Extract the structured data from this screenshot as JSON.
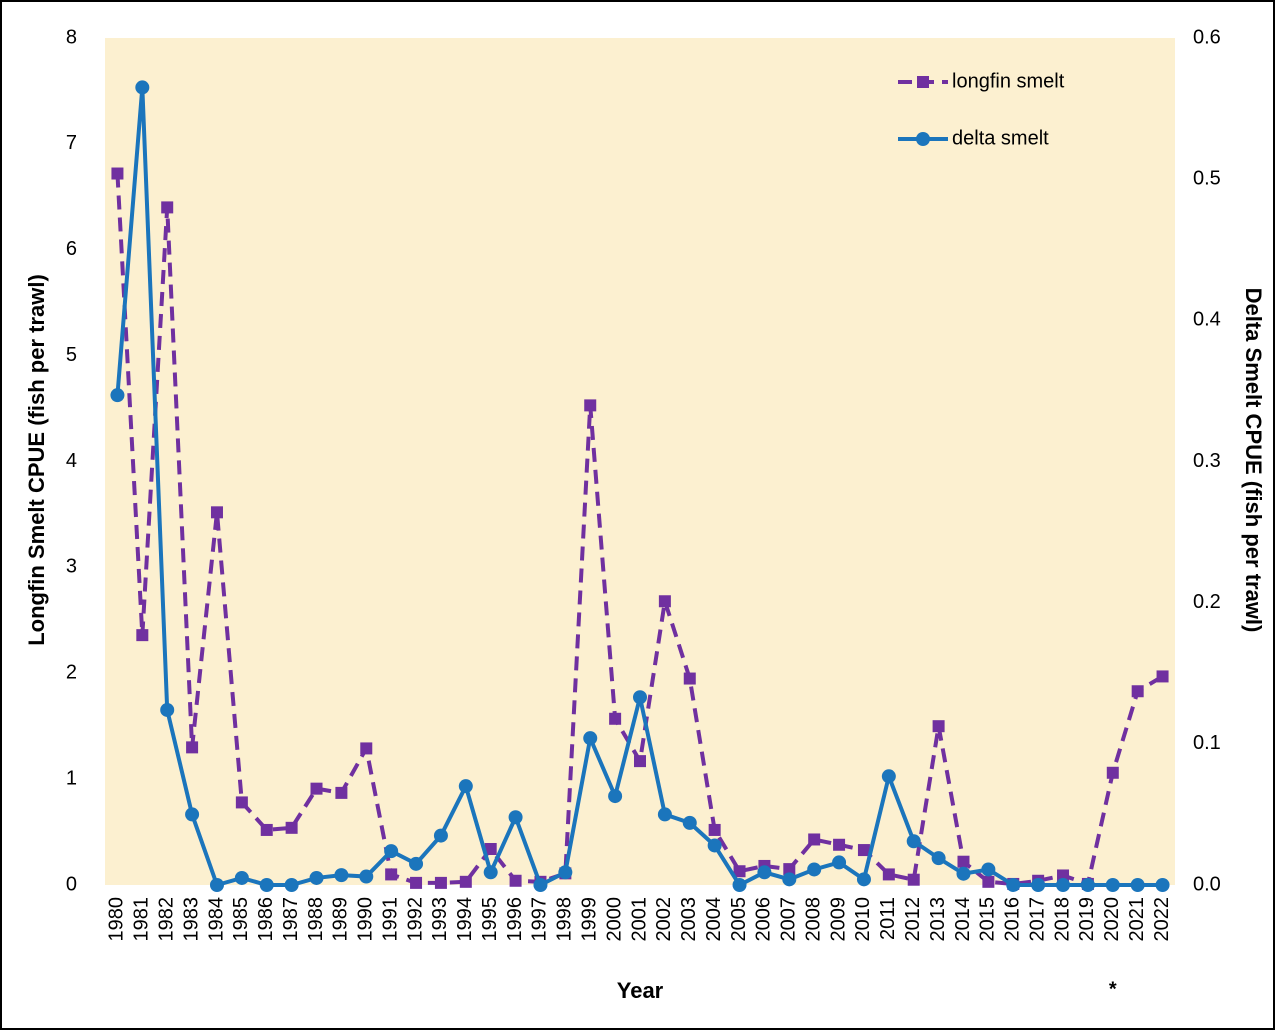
{
  "chart_data": {
    "type": "line",
    "x_label": "Year",
    "y_label": "Longfin Smelt CPUE (fish per trawl)",
    "y2_label": "Delta Smelt CPUE (fish per trawl)",
    "annotation": "*",
    "categories": [
      "1980",
      "1981",
      "1982",
      "1983",
      "1984",
      "1985",
      "1986",
      "1987",
      "1988",
      "1989",
      "1990",
      "1991",
      "1992",
      "1993",
      "1994",
      "1995",
      "1996",
      "1997",
      "1998",
      "1999",
      "2000",
      "2001",
      "2002",
      "2003",
      "2004",
      "2005",
      "2006",
      "2007",
      "2008",
      "2009",
      "2010",
      "2011",
      "2012",
      "2013",
      "2014",
      "2015",
      "2016",
      "2017",
      "2018",
      "2019",
      "2020",
      "2021",
      "2022"
    ],
    "series": [
      {
        "name": "longfin smelt",
        "color": "#7030a0",
        "dashed": true,
        "marker": "square",
        "values": [
          6.72,
          2.36,
          6.4,
          1.3,
          3.52,
          0.78,
          0.52,
          0.54,
          0.91,
          0.87,
          1.29,
          0.1,
          0.02,
          0.02,
          0.03,
          0.34,
          0.04,
          0.03,
          0.11,
          4.53,
          1.57,
          1.17,
          2.68,
          1.95,
          0.52,
          0.13,
          0.18,
          0.15,
          0.43,
          0.38,
          0.33,
          0.1,
          0.05,
          1.5,
          0.22,
          0.03,
          0.01,
          0.04,
          0.09,
          0.01,
          1.06,
          1.83,
          1.97
        ]
      },
      {
        "name": "delta smelt",
        "color": "#1b75bc",
        "dashed": false,
        "marker": "circle",
        "axis": "y2",
        "values": [
          0.347,
          0.565,
          0.124,
          0.05,
          0,
          0.005,
          0,
          0,
          0.005,
          0.007,
          0.006,
          0.024,
          0.015,
          0.035,
          0.07,
          0.009,
          0.048,
          0,
          0.009,
          0.104,
          0.063,
          0.133,
          0.05,
          0.044,
          0.028,
          0,
          0.009,
          0.004,
          0.011,
          0.016,
          0.004,
          0.077,
          0.031,
          0.019,
          0.008,
          0.011,
          0,
          0,
          0,
          0,
          0,
          0,
          0
        ]
      }
    ],
    "ylim": [
      0,
      8
    ],
    "yticks": [
      0,
      1,
      2,
      3,
      4,
      5,
      6,
      7,
      8
    ],
    "y2lim": [
      0,
      0.6
    ],
    "y2ticks": [
      {
        "value": 0,
        "label": "0.0"
      },
      0.1,
      0.2,
      0.3,
      0.4,
      0.5,
      0.6
    ],
    "plot_background": "#fcf0d0",
    "grid": false,
    "legend": "upper right"
  }
}
